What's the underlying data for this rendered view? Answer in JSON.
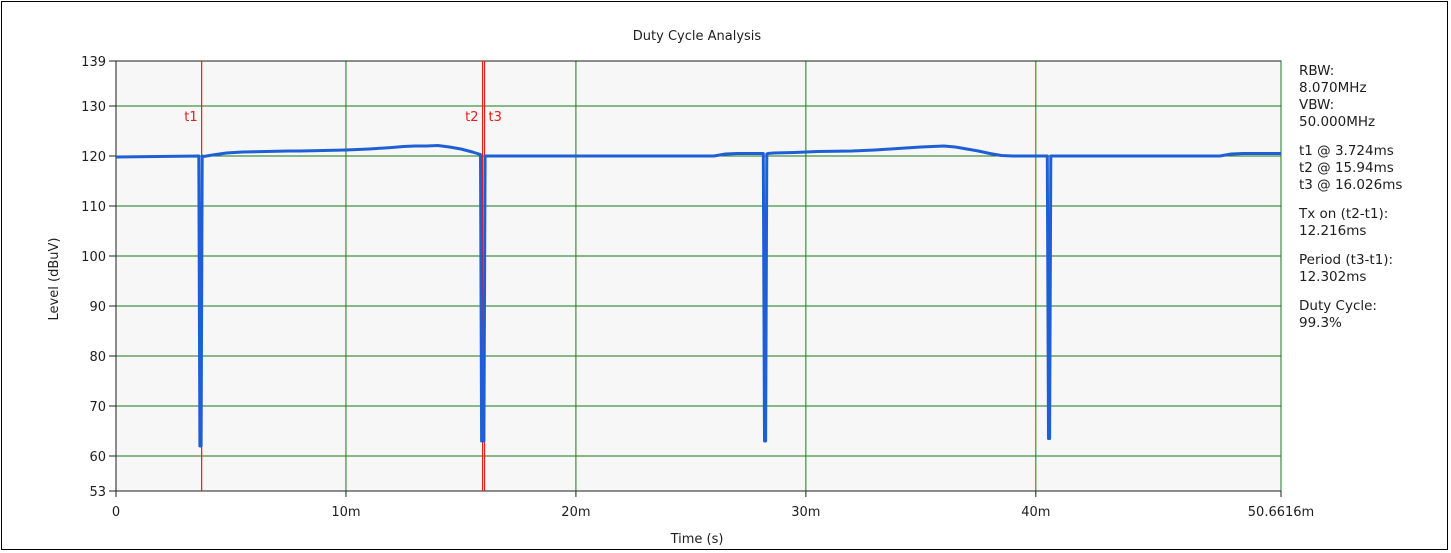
{
  "chart_data": {
    "type": "line",
    "title": "Duty Cycle Analysis",
    "xlabel": "Time (s)",
    "ylabel": "Level (dBuV)",
    "xlim": [
      0,
      50.6616
    ],
    "ylim": [
      53,
      139
    ],
    "x_unit": "ms",
    "grid": true,
    "x_ticks": [
      {
        "value": 0,
        "label": "0"
      },
      {
        "value": 10,
        "label": "10m"
      },
      {
        "value": 20,
        "label": "20m"
      },
      {
        "value": 30,
        "label": "30m"
      },
      {
        "value": 40,
        "label": "40m"
      },
      {
        "value": 50.6616,
        "label": "50.6616m"
      }
    ],
    "y_ticks": [
      {
        "value": 53,
        "label": "53"
      },
      {
        "value": 60,
        "label": "60"
      },
      {
        "value": 70,
        "label": "70"
      },
      {
        "value": 80,
        "label": "80"
      },
      {
        "value": 90,
        "label": "90"
      },
      {
        "value": 100,
        "label": "100"
      },
      {
        "value": 110,
        "label": "110"
      },
      {
        "value": 120,
        "label": "120"
      },
      {
        "value": 130,
        "label": "130"
      },
      {
        "value": 139,
        "label": "139"
      }
    ],
    "series": [
      {
        "color": "#1f5fd6",
        "x": [
          0,
          3.6,
          3.65,
          3.7,
          3.75,
          3.8,
          4.2,
          4.8,
          5.5,
          6.5,
          7.5,
          8.0,
          9.0,
          10.0,
          11.0,
          12.0,
          12.5,
          13.0,
          13.5,
          14.0,
          14.5,
          15.0,
          15.5,
          15.85,
          15.9,
          15.95,
          16.0,
          16.05,
          16.3,
          17.0,
          20.0,
          24.0,
          26.0,
          26.5,
          27.0,
          27.5,
          28.15,
          28.2,
          28.25,
          28.3,
          28.35,
          28.6,
          29.5,
          30.5,
          32.0,
          33.0,
          34.0,
          35.0,
          36.0,
          36.5,
          37.0,
          37.5,
          38.0,
          38.5,
          39.0,
          40.5,
          40.55,
          40.6,
          40.65,
          40.7,
          41.0,
          45.0,
          48.0,
          48.5,
          49.0,
          50.0,
          50.6616
        ],
        "y": [
          119.8,
          120.0,
          62.0,
          62.0,
          120.0,
          119.9,
          120.2,
          120.6,
          120.8,
          120.9,
          121.0,
          121.0,
          121.1,
          121.2,
          121.4,
          121.7,
          121.9,
          122.0,
          122.0,
          122.1,
          121.8,
          121.4,
          120.8,
          120.3,
          63.0,
          63.0,
          63.0,
          120.0,
          120.0,
          120.0,
          120.0,
          120.0,
          120.0,
          120.4,
          120.5,
          120.5,
          120.5,
          63.0,
          63.0,
          120.4,
          120.5,
          120.6,
          120.7,
          120.9,
          121.0,
          121.2,
          121.5,
          121.8,
          122.0,
          121.8,
          121.4,
          121.0,
          120.5,
          120.1,
          120.0,
          120.0,
          63.5,
          63.5,
          120.0,
          120.0,
          120.0,
          120.0,
          120.0,
          120.4,
          120.5,
          120.5,
          120.5
        ]
      }
    ],
    "cursors": [
      {
        "label": "t1",
        "x": 3.724
      },
      {
        "label": "t2",
        "x": 15.94
      },
      {
        "label": "t3",
        "x": 16.026
      }
    ],
    "colors": {
      "grid": "#1a7a1a",
      "cursor": "#e0201c",
      "trace": "#1f5fd6",
      "plot_bg": "#f7f7f7"
    }
  },
  "info": {
    "rbw_label": "RBW:",
    "rbw_value": "8.070MHz",
    "vbw_label": "VBW:",
    "vbw_value": "50.000MHz",
    "t1": "t1 @ 3.724ms",
    "t2": "t2 @ 15.94ms",
    "t3": "t3 @ 16.026ms",
    "txon_label": "Tx on (t2-t1):",
    "txon_value": "12.216ms",
    "period_label": "Period (t3-t1):",
    "period_value": "12.302ms",
    "duty_label": "Duty Cycle:",
    "duty_value": "99.3%"
  }
}
